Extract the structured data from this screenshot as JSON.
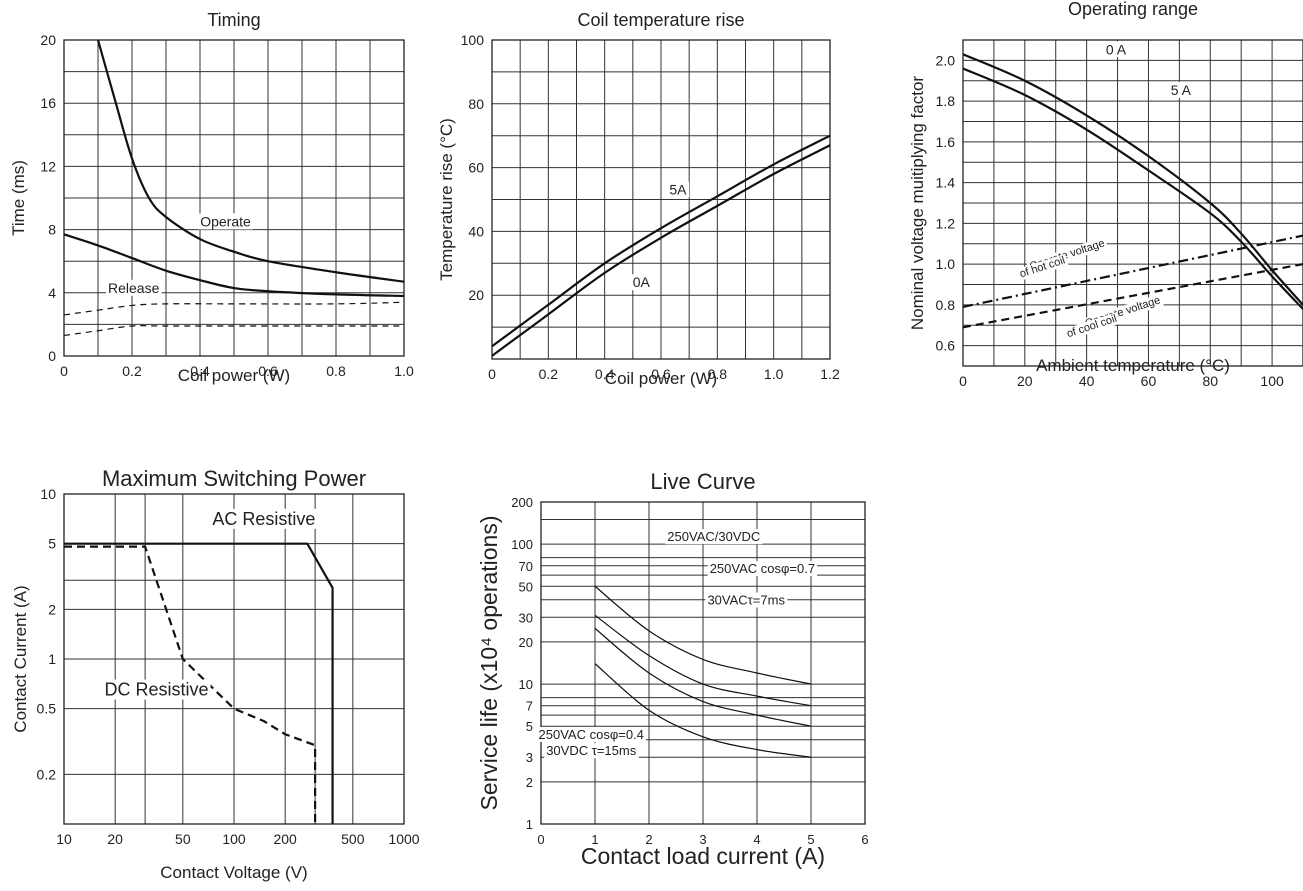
{
  "chart_data": [
    {
      "type": "line",
      "title": "Timing",
      "xlabel": "Coil power (W)",
      "ylabel": "Time (ms)",
      "xlim": [
        0,
        1.0
      ],
      "ylim": [
        0,
        20
      ],
      "xticks": [
        {
          "v": 0,
          "label": "0"
        },
        {
          "v": 0.2,
          "label": "0.2"
        },
        {
          "v": 0.4,
          "label": "0.4"
        },
        {
          "v": 0.6,
          "label": "0.6"
        },
        {
          "v": 0.8,
          "label": "0.8"
        },
        {
          "v": 1.0,
          "label": "1.0"
        }
      ],
      "yticks": [
        {
          "v": 0,
          "label": "0"
        },
        {
          "v": 4,
          "label": "4"
        },
        {
          "v": 8,
          "label": "8"
        },
        {
          "v": 12,
          "label": "12"
        },
        {
          "v": 16,
          "label": "16"
        },
        {
          "v": 20,
          "label": "20"
        }
      ],
      "grid": true,
      "series": [
        {
          "style": "solid",
          "points": [
            [
              0.1,
              20
            ],
            [
              0.15,
              16.2
            ],
            [
              0.2,
              12.5
            ],
            [
              0.25,
              10
            ],
            [
              0.3,
              8.8
            ],
            [
              0.4,
              7.4
            ],
            [
              0.5,
              6.6
            ],
            [
              0.6,
              6.0
            ],
            [
              0.8,
              5.3
            ],
            [
              1.0,
              4.7
            ]
          ]
        },
        {
          "style": "solid",
          "points": [
            [
              0,
              7.7
            ],
            [
              0.1,
              7.0
            ],
            [
              0.2,
              6.2
            ],
            [
              0.3,
              5.4
            ],
            [
              0.4,
              4.8
            ],
            [
              0.5,
              4.3
            ],
            [
              0.6,
              4.1
            ],
            [
              0.8,
              3.9
            ],
            [
              1.0,
              3.8
            ]
          ]
        },
        {
          "style": "dashed",
          "points": [
            [
              0,
              2.6
            ],
            [
              0.1,
              2.9
            ],
            [
              0.2,
              3.2
            ],
            [
              0.3,
              3.3
            ],
            [
              0.5,
              3.3
            ],
            [
              0.8,
              3.3
            ],
            [
              1.0,
              3.4
            ]
          ]
        },
        {
          "style": "dashed",
          "points": [
            [
              0,
              1.3
            ],
            [
              0.1,
              1.6
            ],
            [
              0.2,
              1.9
            ],
            [
              0.3,
              1.9
            ],
            [
              0.6,
              1.9
            ],
            [
              1.0,
              1.9
            ]
          ]
        }
      ],
      "annotations": [
        {
          "text": "Operate",
          "x": 0.475,
          "y": 8.2
        },
        {
          "text": "Release",
          "x": 0.205,
          "y": 4.0
        }
      ]
    },
    {
      "type": "line",
      "title": "Coil temperature rise",
      "xlabel": "Coil power (W)",
      "ylabel": "Temperature rise (°C)",
      "xlim": [
        0,
        1.2
      ],
      "ylim": [
        0,
        100
      ],
      "xticks": [
        {
          "v": 0,
          "label": "0"
        },
        {
          "v": 0.2,
          "label": "0.2"
        },
        {
          "v": 0.4,
          "label": "0.4"
        },
        {
          "v": 0.6,
          "label": "0.6"
        },
        {
          "v": 0.8,
          "label": "0.8"
        },
        {
          "v": 1.0,
          "label": "1.0"
        },
        {
          "v": 1.2,
          "label": "1.2"
        }
      ],
      "yticks": [
        {
          "v": 20,
          "label": "20"
        },
        {
          "v": 40,
          "label": "40"
        },
        {
          "v": 60,
          "label": "60"
        },
        {
          "v": 80,
          "label": "80"
        },
        {
          "v": 100,
          "label": "100"
        }
      ],
      "grid": true,
      "series": [
        {
          "name": "5A",
          "points": [
            [
              0,
              4
            ],
            [
              0.2,
              17
            ],
            [
              0.4,
              30
            ],
            [
              0.6,
              41
            ],
            [
              0.8,
              51
            ],
            [
              1.0,
              61
            ],
            [
              1.2,
              70
            ]
          ]
        },
        {
          "name": "0A",
          "points": [
            [
              0,
              1
            ],
            [
              0.2,
              14
            ],
            [
              0.4,
              27
            ],
            [
              0.6,
              38
            ],
            [
              0.8,
              48
            ],
            [
              1.0,
              58
            ],
            [
              1.2,
              67
            ]
          ]
        }
      ],
      "annotations": [
        {
          "text": "5A",
          "x": 0.66,
          "y": 51.5
        },
        {
          "text": "0A",
          "x": 0.53,
          "y": 22.5
        }
      ]
    },
    {
      "type": "line",
      "title": "Operating range",
      "xlabel": "Ambient temperature (°C)",
      "ylabel": "Nominal voltage muitiplying factor",
      "xlim": [
        0,
        110
      ],
      "ylim": [
        0.5,
        2.1
      ],
      "xticks": [
        {
          "v": 0,
          "label": "0"
        },
        {
          "v": 20,
          "label": "20"
        },
        {
          "v": 40,
          "label": "40"
        },
        {
          "v": 60,
          "label": "60"
        },
        {
          "v": 80,
          "label": "80"
        },
        {
          "v": 100,
          "label": "100"
        }
      ],
      "yticks": [
        {
          "v": 0.6,
          "label": "0.6"
        },
        {
          "v": 0.8,
          "label": "0.8"
        },
        {
          "v": 1.0,
          "label": "1.0"
        },
        {
          "v": 1.2,
          "label": "1.2"
        },
        {
          "v": 1.4,
          "label": "1.4"
        },
        {
          "v": 1.6,
          "label": "1.6"
        },
        {
          "v": 1.8,
          "label": "1.8"
        },
        {
          "v": 2.0,
          "label": "2.0"
        }
      ],
      "grid": true,
      "series": [
        {
          "name": "0 A",
          "style": "solid",
          "points": [
            [
              0,
              2.03
            ],
            [
              20,
              1.9
            ],
            [
              40,
              1.73
            ],
            [
              60,
              1.53
            ],
            [
              80,
              1.3
            ],
            [
              90,
              1.15
            ],
            [
              100,
              0.97
            ],
            [
              110,
              0.8
            ]
          ]
        },
        {
          "name": "5 A",
          "style": "solid",
          "points": [
            [
              0,
              1.96
            ],
            [
              20,
              1.83
            ],
            [
              40,
              1.66
            ],
            [
              60,
              1.46
            ],
            [
              80,
              1.25
            ],
            [
              90,
              1.11
            ],
            [
              100,
              0.94
            ],
            [
              110,
              0.78
            ]
          ]
        },
        {
          "style": "dashdot",
          "points": [
            [
              0,
              0.79
            ],
            [
              110,
              1.14
            ]
          ]
        },
        {
          "style": "dashed",
          "points": [
            [
              0,
              0.69
            ],
            [
              110,
              1.0
            ]
          ]
        }
      ],
      "annotations": [
        {
          "text": "0 A",
          "x": 49.5,
          "y": 2.03
        },
        {
          "text": "5 A",
          "x": 70.5,
          "y": 1.83
        },
        {
          "text": "Operate voltage",
          "x": 34,
          "y": 1.03,
          "rotate": -18
        },
        {
          "text": "of hot coil",
          "x": 26,
          "y": 0.97,
          "rotate": -18
        },
        {
          "text": "Operate voltage",
          "x": 52,
          "y": 0.75,
          "rotate": -18
        },
        {
          "text": "of cool coil",
          "x": 42,
          "y": 0.68,
          "rotate": -18
        }
      ]
    },
    {
      "type": "line",
      "title": "Maximum Switching Power",
      "xlabel": "Contact Voltage (V)",
      "ylabel": "Contact Current (A)",
      "xscale": "log",
      "yscale": "log",
      "xlim": [
        10,
        1000
      ],
      "ylim": [
        0.1,
        10
      ],
      "xticks": [
        {
          "v": 10,
          "label": "10"
        },
        {
          "v": 20,
          "label": "20"
        },
        {
          "v": 50,
          "label": "50"
        },
        {
          "v": 100,
          "label": "100"
        },
        {
          "v": 200,
          "label": "200"
        },
        {
          "v": 500,
          "label": "500"
        },
        {
          "v": 1000,
          "label": "1000"
        }
      ],
      "yticks": [
        {
          "v": 0.2,
          "label": "0.2"
        },
        {
          "v": 0.5,
          "label": "0.5"
        },
        {
          "v": 1,
          "label": "1"
        },
        {
          "v": 2,
          "label": "2"
        },
        {
          "v": 5,
          "label": "5"
        },
        {
          "v": 10,
          "label": "10"
        }
      ],
      "grid": true,
      "series": [
        {
          "name": "AC Resistive",
          "style": "solid",
          "points": [
            [
              10,
              5
            ],
            [
              270,
              5
            ],
            [
              380,
              2.7
            ],
            [
              380,
              0.1
            ]
          ]
        },
        {
          "name": "DC Resistive",
          "style": "dashed",
          "points": [
            [
              10,
              4.8
            ],
            [
              30,
              4.8
            ],
            [
              50,
              1.0
            ],
            [
              100,
              0.5
            ],
            [
              150,
              0.42
            ],
            [
              200,
              0.35
            ],
            [
              300,
              0.3
            ],
            [
              300,
              0.1
            ]
          ]
        }
      ],
      "annotations": [
        {
          "text": "AC Resistive",
          "x": 150,
          "y": 6.5
        },
        {
          "text": "DC Resistive",
          "x": 35,
          "y": 0.6
        }
      ]
    },
    {
      "type": "line",
      "title": "Live Curve",
      "xlabel": "Contact load current (A)",
      "ylabel": "Service life (x10⁴ operations)",
      "yscale": "log",
      "xlim": [
        0,
        6
      ],
      "ylim": [
        1,
        200
      ],
      "xticks": [
        {
          "v": 0,
          "label": "0"
        },
        {
          "v": 1,
          "label": "1"
        },
        {
          "v": 2,
          "label": "2"
        },
        {
          "v": 3,
          "label": "3"
        },
        {
          "v": 4,
          "label": "4"
        },
        {
          "v": 5,
          "label": "5"
        },
        {
          "v": 6,
          "label": "6"
        }
      ],
      "yticks": [
        {
          "v": 1,
          "label": "1"
        },
        {
          "v": 2,
          "label": "2"
        },
        {
          "v": 3,
          "label": "3"
        },
        {
          "v": 5,
          "label": "5"
        },
        {
          "v": 7,
          "label": "7"
        },
        {
          "v": 10,
          "label": "10"
        },
        {
          "v": 20,
          "label": "20"
        },
        {
          "v": 30,
          "label": "30"
        },
        {
          "v": 50,
          "label": "50"
        },
        {
          "v": 70,
          "label": "70"
        },
        {
          "v": 100,
          "label": "100"
        },
        {
          "v": 200,
          "label": "200"
        }
      ],
      "grid": true,
      "series": [
        {
          "name": "250VAC/30VDC",
          "points": [
            [
              1,
              50
            ],
            [
              2,
              24
            ],
            [
              3,
              15
            ],
            [
              4,
              12
            ],
            [
              5,
              10
            ]
          ]
        },
        {
          "name": "250VAC cosφ=0.7",
          "points": [
            [
              1,
              31
            ],
            [
              2,
              16
            ],
            [
              3,
              10
            ],
            [
              4,
              8.2
            ],
            [
              5,
              7
            ]
          ]
        },
        {
          "name": "30VACτ=7ms",
          "points": [
            [
              1,
              25
            ],
            [
              2,
              12
            ],
            [
              3,
              7.5
            ],
            [
              4,
              6
            ],
            [
              5,
              5
            ]
          ]
        },
        {
          "name": "250VAC cosφ=0.4 / 30VDC τ=15ms",
          "points": [
            [
              1,
              14
            ],
            [
              2,
              6.5
            ],
            [
              3,
              4.2
            ],
            [
              4,
              3.4
            ],
            [
              5,
              3
            ]
          ]
        }
      ],
      "annotations": [
        {
          "text": "250VAC/30VDC",
          "x": 3.2,
          "y": 105
        },
        {
          "text": "250VAC cosφ=0.7",
          "x": 4.1,
          "y": 62
        },
        {
          "text": "30VACτ=7ms",
          "x": 3.8,
          "y": 37
        },
        {
          "text": "250VAC cosφ=0.4",
          "x": 0.93,
          "y": 4.05
        },
        {
          "text": "30VDC τ=15ms",
          "x": 0.93,
          "y": 3.1
        }
      ]
    }
  ]
}
